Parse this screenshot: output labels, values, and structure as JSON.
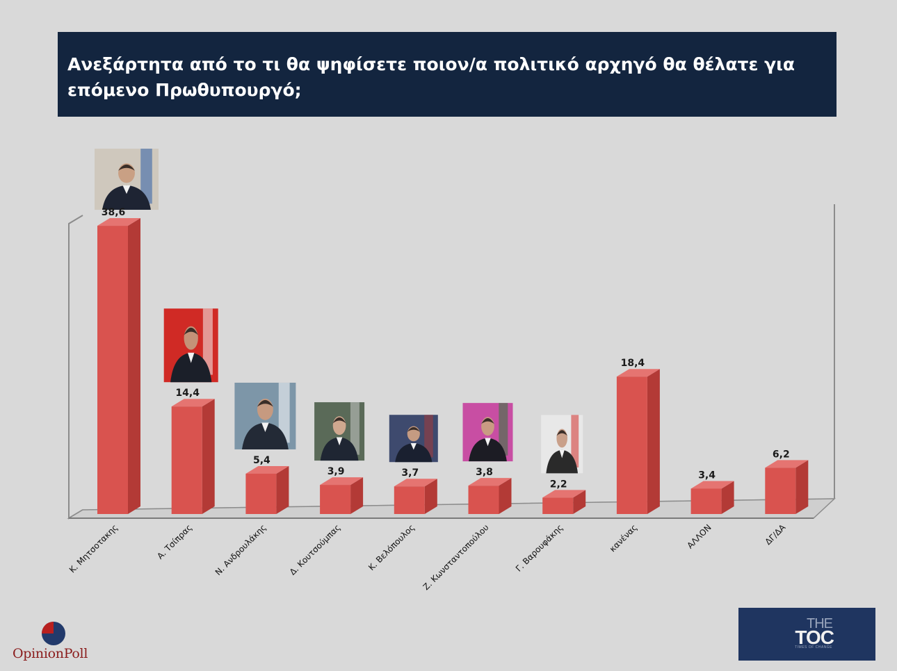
{
  "header": {
    "title": "Ανεξάρτητα από το τι θα ψηφίσετε ποιον/α πολιτικό αρχηγό θα θέλατε για επόμενο Πρωθυπουργό;"
  },
  "chart_data": {
    "type": "bar",
    "categories": [
      "Κ. Μητσοτακης",
      "Α. Τσίπρας",
      "Ν. Ανδρουλάκης",
      "Δ. Κουτσούμπας",
      "Κ. Βελόπουλος",
      "Ζ. Κωνσταντοπούλου",
      "Γ. Βαρουφάκης",
      "κανένας",
      "ΑΛΛΟΝ",
      "ΔΓ/ΔΑ"
    ],
    "values": [
      38.6,
      14.4,
      5.4,
      3.9,
      3.7,
      3.8,
      2.2,
      18.4,
      3.4,
      6.2
    ],
    "value_labels": [
      "38,6",
      "14,4",
      "5,4",
      "3,9",
      "3,7",
      "3,8",
      "2,2",
      "18,4",
      "3,4",
      "6,2"
    ],
    "title": "Ανεξάρτητα από το τι θα ψηφίσετε ποιον/α πολιτικό αρχηγό θα θέλατε για επόμενο Πρωθυπουργό;",
    "xlabel": "",
    "ylabel": "",
    "ylim": [
      0,
      40
    ],
    "grid": false,
    "style": "3d-column",
    "bar_color": "#d9534f"
  },
  "logos": {
    "opinionpoll": "OpinionPoll",
    "toc_the": "THE",
    "toc_main": "TOC",
    "toc_sub": "TIMES OF CHANGE"
  },
  "colors": {
    "header_bg": "#13253f",
    "background": "#d9d9d9",
    "bar_front": "#d9534f",
    "bar_side": "#b33a36",
    "bar_top": "#e57471"
  }
}
